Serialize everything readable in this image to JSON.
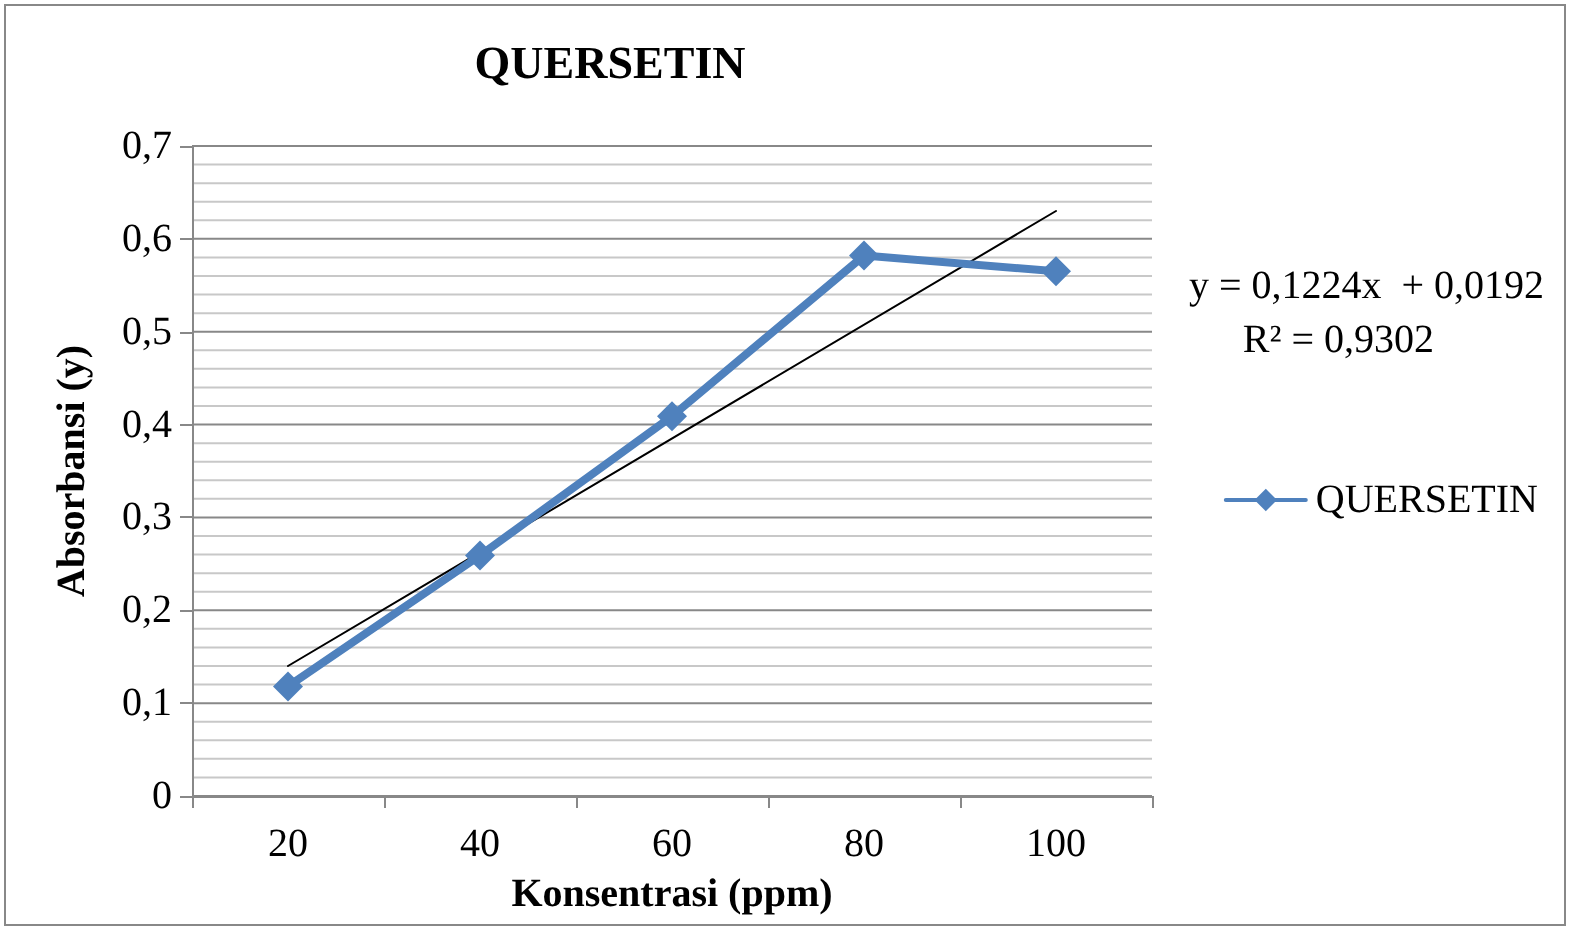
{
  "chart_data": {
    "type": "line",
    "title": "QUERSETIN",
    "xlabel": "Konsentrasi (ppm)",
    "ylabel": "Absorbansi (y)",
    "categories": [
      "20",
      "40",
      "60",
      "80",
      "100"
    ],
    "series": [
      {
        "name": "QUERSETIN",
        "color": "#4f81bd",
        "values": [
          0.118,
          0.259,
          0.409,
          0.582,
          0.565
        ],
        "marker": "diamond"
      },
      {
        "type": "line",
        "color": "#000000",
        "x": [
          "20",
          "100"
        ],
        "values": [
          0.14,
          0.63
        ],
        "marker": "none"
      }
    ],
    "ylim": [
      0,
      0.7
    ],
    "yticks": [
      {
        "value": 0,
        "label": "0"
      },
      {
        "value": 0.02,
        "label": null
      },
      {
        "value": 0.04,
        "label": null
      },
      {
        "value": 0.06,
        "label": null
      },
      {
        "value": 0.08,
        "label": null
      },
      {
        "value": 0.1,
        "label": "0,1"
      },
      {
        "value": 0.12,
        "label": null
      },
      {
        "value": 0.14,
        "label": null
      },
      {
        "value": 0.16,
        "label": null
      },
      {
        "value": 0.18,
        "label": null
      },
      {
        "value": 0.2,
        "label": "0,2"
      },
      {
        "value": 0.22,
        "label": null
      },
      {
        "value": 0.24,
        "label": null
      },
      {
        "value": 0.26,
        "label": null
      },
      {
        "value": 0.28,
        "label": null
      },
      {
        "value": 0.3,
        "label": "0,3"
      },
      {
        "value": 0.32,
        "label": null
      },
      {
        "value": 0.34,
        "label": null
      },
      {
        "value": 0.36,
        "label": null
      },
      {
        "value": 0.38,
        "label": null
      },
      {
        "value": 0.4,
        "label": "0,4"
      },
      {
        "value": 0.42,
        "label": null
      },
      {
        "value": 0.44,
        "label": null
      },
      {
        "value": 0.46,
        "label": null
      },
      {
        "value": 0.48,
        "label": null
      },
      {
        "value": 0.5,
        "label": "0,5"
      },
      {
        "value": 0.52,
        "label": null
      },
      {
        "value": 0.54,
        "label": null
      },
      {
        "value": 0.56,
        "label": null
      },
      {
        "value": 0.58,
        "label": null
      },
      {
        "value": 0.6,
        "label": "0,6"
      },
      {
        "value": 0.62,
        "label": null
      },
      {
        "value": 0.64,
        "label": null
      },
      {
        "value": 0.66,
        "label": null
      },
      {
        "value": 0.68,
        "label": null
      },
      {
        "value": 0.7,
        "label": "0,7"
      }
    ],
    "annotations": [
      "y = 0,1224x  + 0,0192",
      "R² = 0,9302"
    ],
    "grid": "y",
    "legend": "right",
    "line_style": "solid"
  }
}
